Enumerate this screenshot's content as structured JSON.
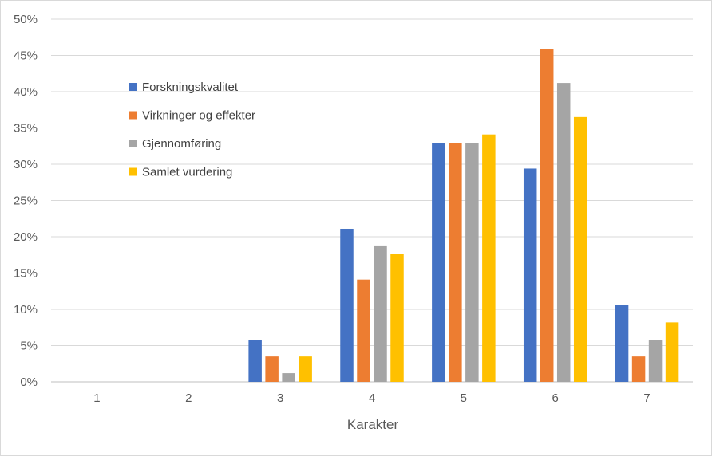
{
  "chart_data": {
    "type": "bar",
    "title": "",
    "xlabel": "Karakter",
    "ylabel": "",
    "categories": [
      "1",
      "2",
      "3",
      "4",
      "5",
      "6",
      "7"
    ],
    "yticks": [
      "0%",
      "5%",
      "10%",
      "15%",
      "20%",
      "25%",
      "30%",
      "35%",
      "40%",
      "45%",
      "50%"
    ],
    "ylim": [
      0,
      50
    ],
    "grid": true,
    "legend_position": "top-left",
    "series": [
      {
        "name": "Forskningskvalitet",
        "color": "#4472c4",
        "values": [
          0,
          0,
          5.8,
          21.1,
          32.9,
          29.4,
          10.6
        ]
      },
      {
        "name": "Virkninger og effekter",
        "color": "#ed7d31",
        "values": [
          0,
          0,
          3.5,
          14.1,
          32.9,
          45.9,
          3.5
        ]
      },
      {
        "name": "Gjennomføring",
        "color": "#a5a5a5",
        "values": [
          0,
          0,
          1.2,
          18.8,
          32.9,
          41.2,
          5.8
        ]
      },
      {
        "name": "Samlet vurdering",
        "color": "#ffc000",
        "values": [
          0,
          0,
          3.5,
          17.6,
          34.1,
          36.5,
          8.2
        ]
      }
    ]
  }
}
